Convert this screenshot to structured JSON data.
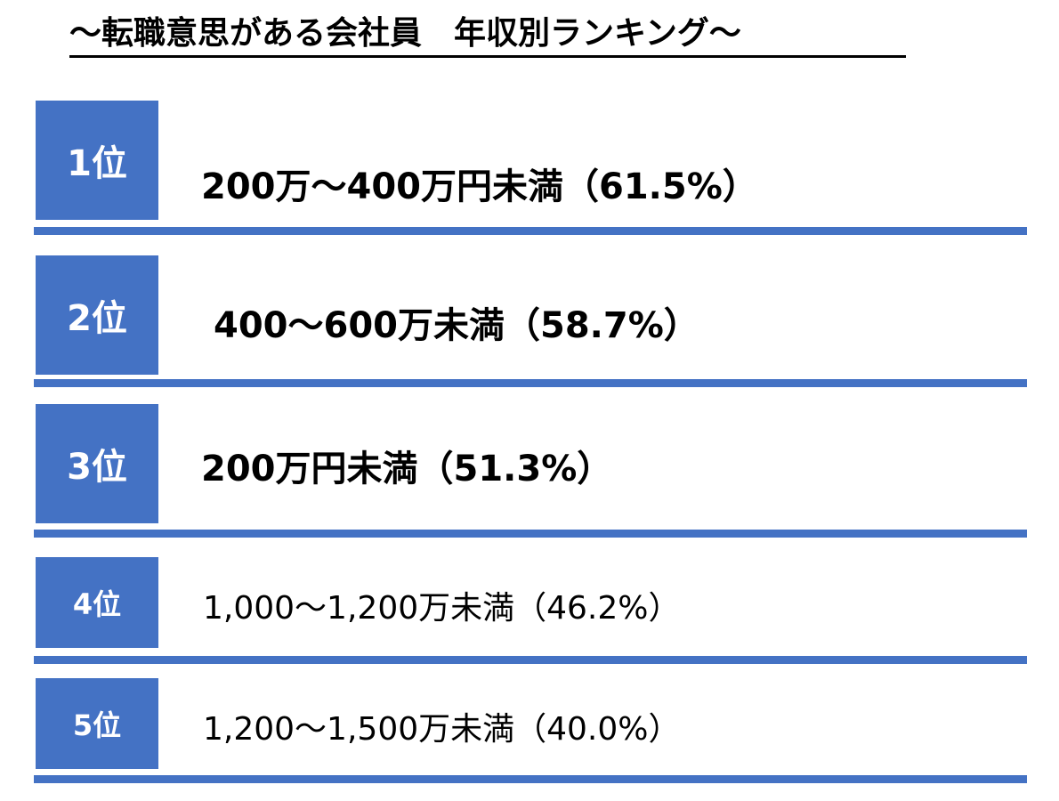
{
  "title": "～転職意思がある会社員　年収別ランキング～",
  "accent_color": "#4472c4",
  "ranking": [
    {
      "rank": "1位",
      "income": "200万～400万円未満",
      "percent": "（61.5%）",
      "share_pct": 61.5
    },
    {
      "rank": "2位",
      "income": "400～600万未満",
      "percent": "（58.7%）",
      "share_pct": 58.7
    },
    {
      "rank": "3位",
      "income": "200万円未満",
      "percent": "（51.3%）",
      "share_pct": 51.3
    },
    {
      "rank": "4位",
      "income": "1,000～1,200万未満",
      "percent": "（46.2%）",
      "share_pct": 46.2
    },
    {
      "rank": "5位",
      "income": "1,200～1,500万未満",
      "percent": "（40.0%）",
      "share_pct": 40.0
    }
  ]
}
